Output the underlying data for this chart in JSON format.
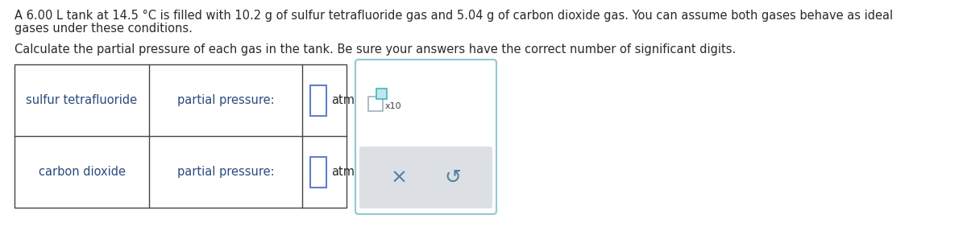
{
  "title_line1": "A 6.00 L tank at 14.5 °C is filled with 10.2 g of sulfur tetrafluoride gas and 5.04 g of carbon dioxide gas. You can assume both gases behave as ideal",
  "title_line2": "gases under these conditions.",
  "subtitle": "Calculate the partial pressure of each gas in the tank. Be sure your answers have the correct number of significant digits.",
  "row1_label": "sulfur tetrafluoride",
  "row2_label": "carbon dioxide",
  "col2_label": "partial pressure:",
  "unit": "atm",
  "body_text_color": "#2a2a2a",
  "label_color": "#2a4a80",
  "background_color": "#ffffff",
  "table_line_color": "#444444",
  "input_box_border": "#6080d0",
  "panel_border_color": "#90c8d8",
  "panel_bg": "#ffffff",
  "gray_bg": "#dce0e4",
  "base_box_border": "#a0b0c0",
  "teal_box_border": "#40b8c0",
  "teal_box_fill": "#c0e8ec",
  "x10_color": "#404040",
  "cross_color": "#5080a0",
  "undo_color": "#5080a0",
  "x10_label": "x10"
}
